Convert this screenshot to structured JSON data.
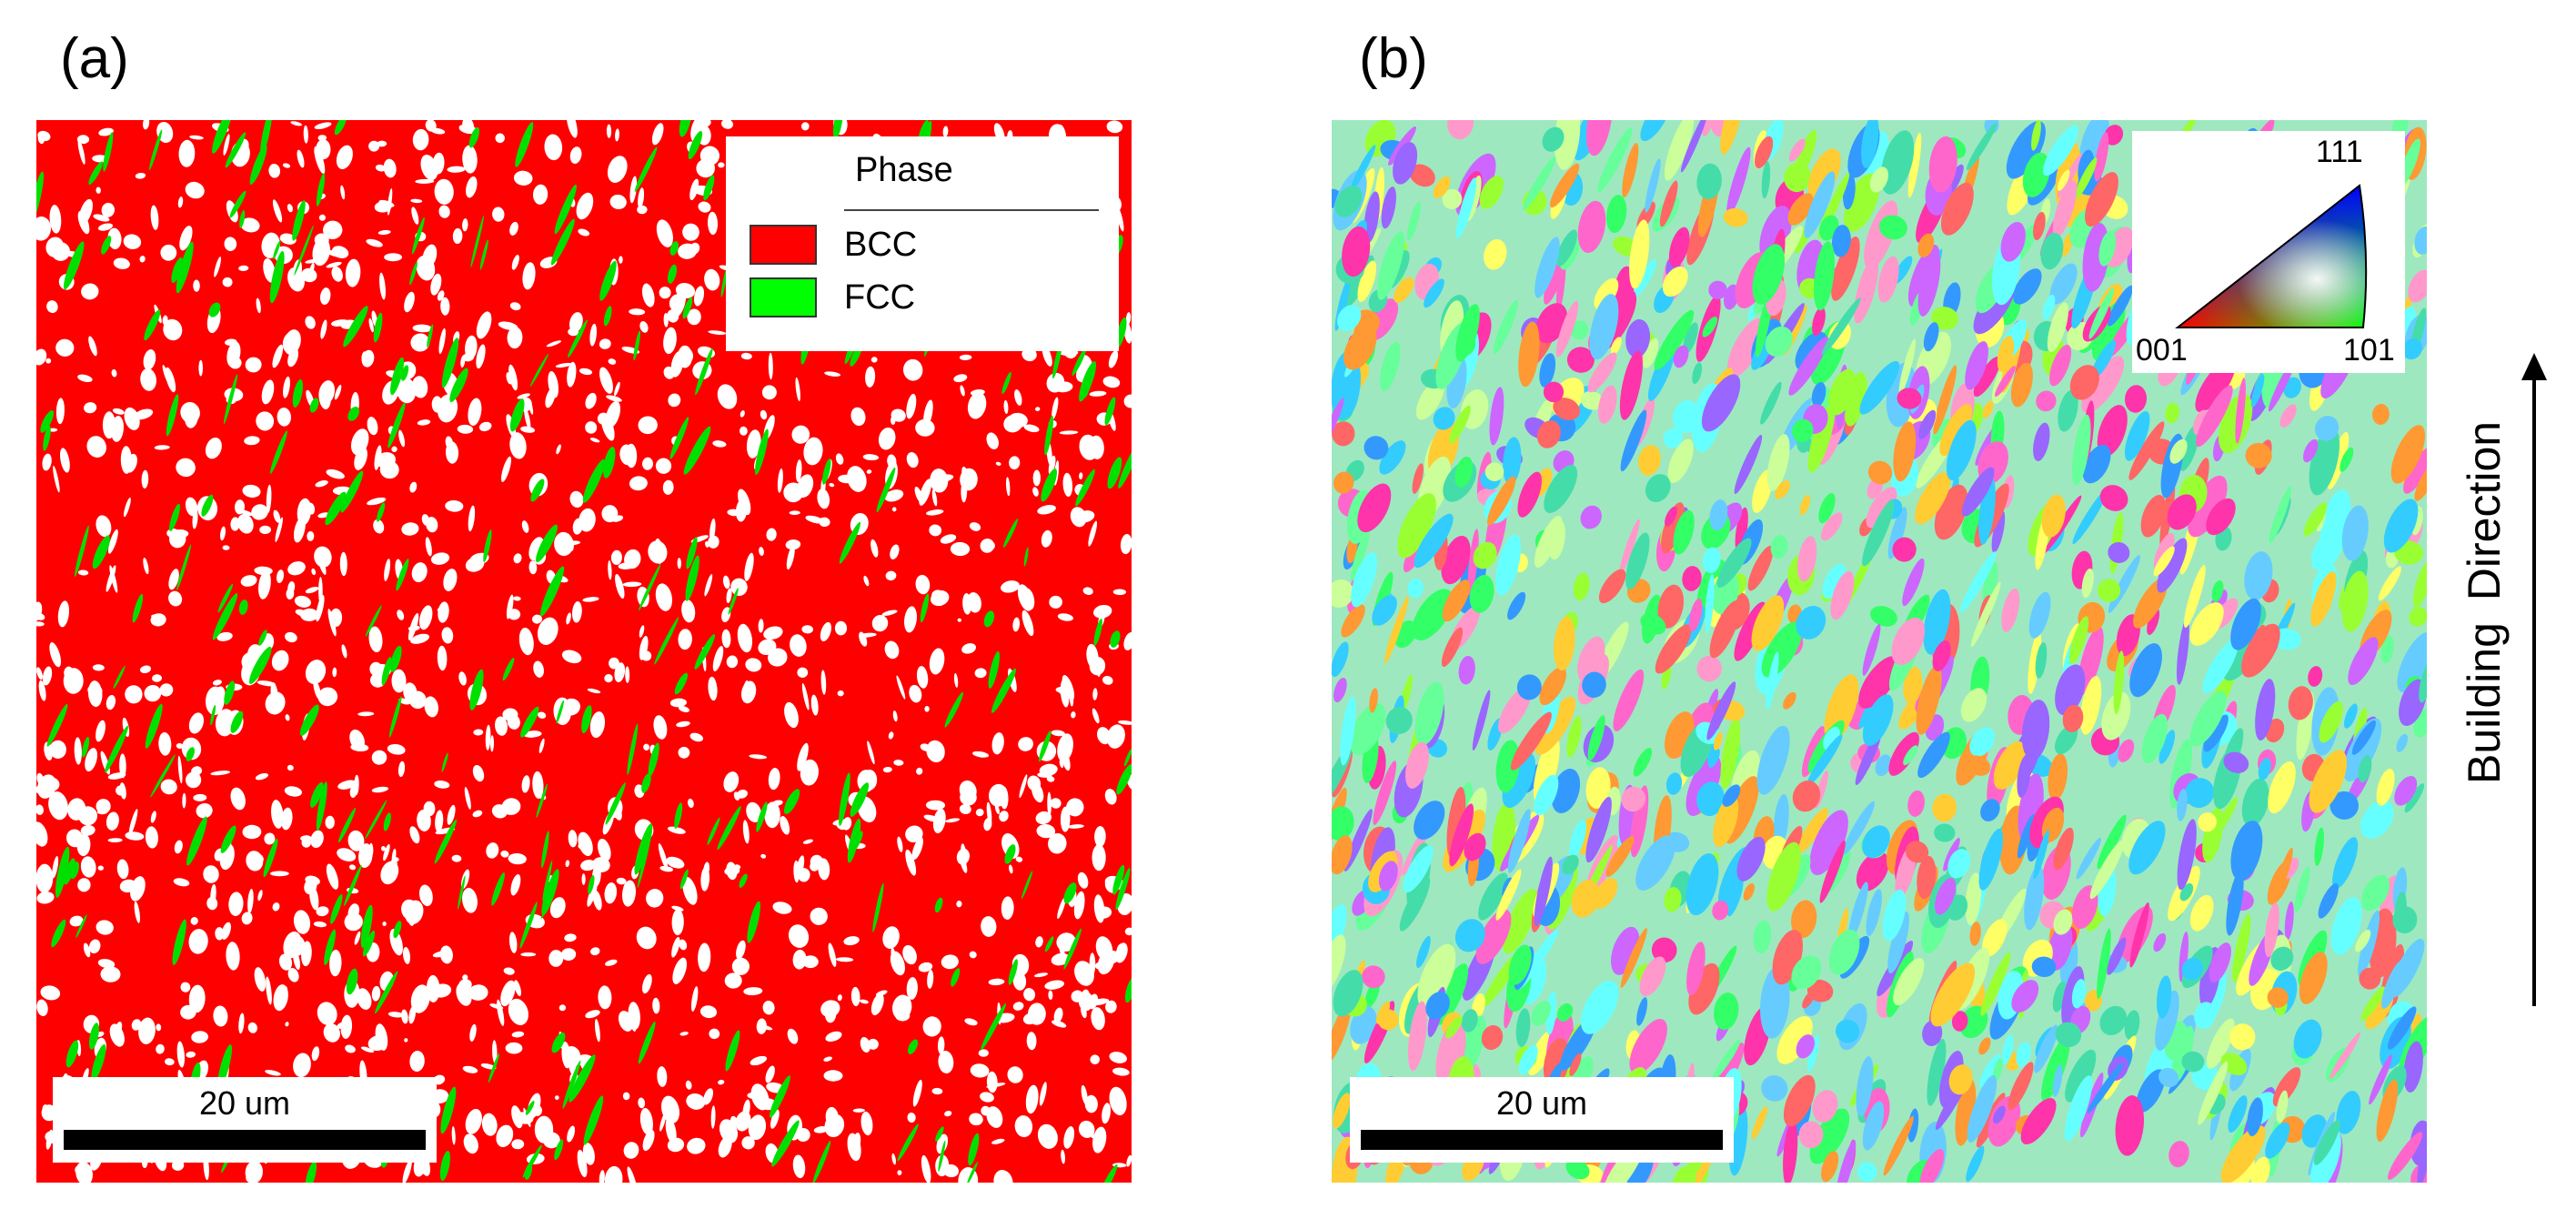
{
  "panels": {
    "a": {
      "label": "(a)",
      "legend": {
        "title": "Phase",
        "items": [
          {
            "label": "BCC",
            "color": "#ff0000"
          },
          {
            "label": "FCC",
            "color": "#00ff00"
          }
        ]
      },
      "scalebar": "20 um"
    },
    "b": {
      "label": "(b)",
      "ipf_key": {
        "corner_111": "111",
        "corner_001": "001",
        "corner_101": "101"
      },
      "scalebar": "20 um"
    }
  },
  "building_direction": "Building Direction",
  "colors": {
    "bcc": "#ff0000",
    "fcc": "#00ff00",
    "unindexed": "#ffffff"
  }
}
